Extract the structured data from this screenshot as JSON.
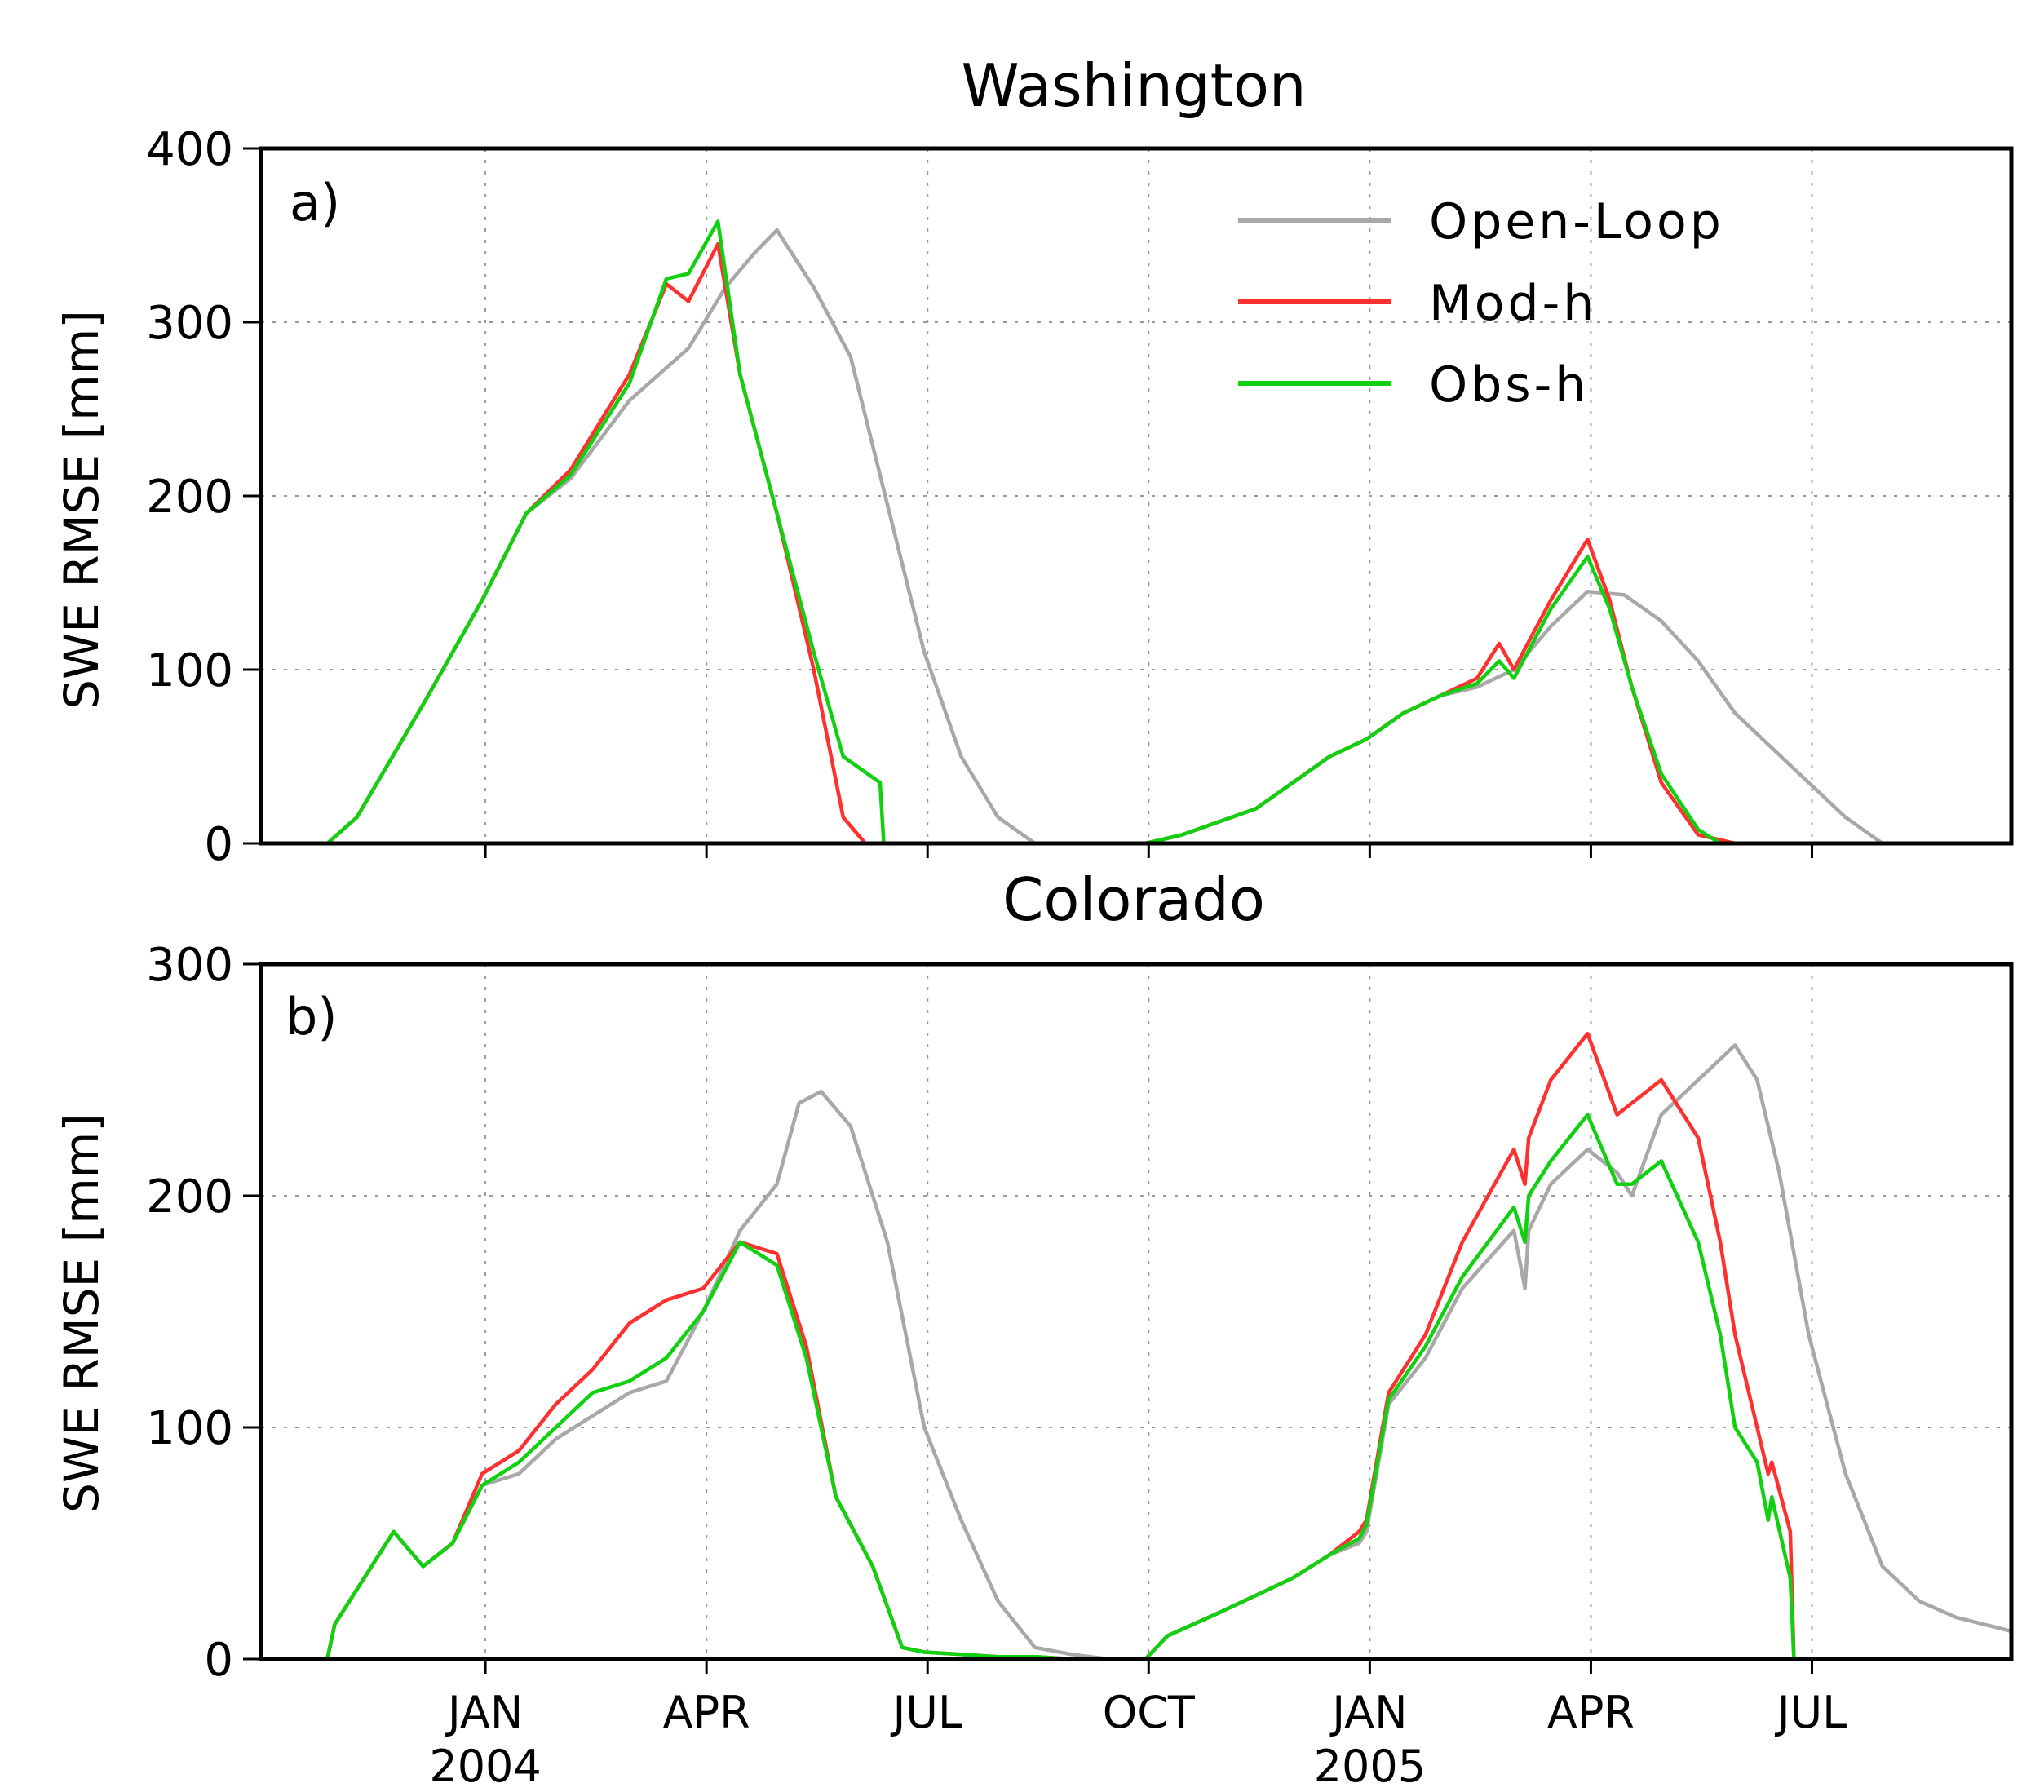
{
  "chart_data": [
    {
      "type": "line",
      "panel_label": "a)",
      "title": "Washington",
      "ylabel": "SWE RMSE [mm]",
      "xlabel": "",
      "ylim": [
        0,
        400
      ],
      "yticks": [
        0,
        100,
        200,
        300,
        400
      ],
      "x_unit": "months since 2003-10-01",
      "xlim": [
        0,
        23.75
      ],
      "grid": true,
      "legend": "top-right",
      "series": [
        {
          "name": "Open-Loop",
          "color": "#a8a8a8",
          "x": [
            0,
            0.9,
            1.3,
            2.2,
            3.0,
            3.6,
            4.2,
            5.0,
            5.8,
            6.3,
            6.7,
            7.0,
            7.5,
            8.0,
            8.5,
            9.0,
            9.5,
            10.0,
            10.5,
            11.0,
            11.5,
            12.0,
            12.5,
            13.5,
            14.5,
            15.0,
            15.5,
            16.0,
            16.5,
            17.0,
            17.5,
            18.0,
            18.5,
            19.0,
            19.5,
            20.0,
            20.5,
            21.0,
            21.5,
            22.0,
            22.5,
            23.0,
            23.75
          ],
          "values": [
            0,
            0,
            15,
            80,
            140,
            190,
            210,
            255,
            285,
            320,
            340,
            353,
            320,
            280,
            195,
            110,
            50,
            15,
            0,
            0,
            0,
            0,
            5,
            20,
            50,
            60,
            75,
            85,
            90,
            100,
            125,
            145,
            143,
            128,
            105,
            75,
            55,
            35,
            15,
            0,
            0,
            0,
            0
          ]
        },
        {
          "name": "Mod-h",
          "color": "#ff3030",
          "x": [
            0,
            0.9,
            1.3,
            2.2,
            3.0,
            3.6,
            4.2,
            5.0,
            5.5,
            5.8,
            6.2,
            6.5,
            7.0,
            7.5,
            7.9,
            8.2,
            8.5,
            9.0,
            11.5,
            12.0,
            12.5,
            13.5,
            14.5,
            15.0,
            15.5,
            16.0,
            16.5,
            16.8,
            17.0,
            17.5,
            18.0,
            18.3,
            18.6,
            19.0,
            19.5,
            20.0,
            23.75
          ],
          "values": [
            0,
            0,
            15,
            80,
            140,
            190,
            215,
            270,
            322,
            312,
            345,
            270,
            190,
            100,
            15,
            0,
            0,
            0,
            0,
            0,
            5,
            20,
            50,
            60,
            75,
            85,
            95,
            115,
            100,
            140,
            175,
            140,
            90,
            35,
            5,
            0,
            0
          ]
        },
        {
          "name": "Obs-h",
          "color": "#10d010",
          "x": [
            0,
            0.9,
            1.3,
            2.2,
            3.0,
            3.6,
            4.2,
            5.0,
            5.5,
            5.8,
            6.2,
            6.5,
            7.0,
            7.5,
            7.9,
            8.4,
            8.45,
            11.5,
            12.0,
            12.5,
            13.5,
            14.5,
            15.0,
            15.5,
            16.0,
            16.5,
            16.8,
            17.0,
            17.5,
            18.0,
            18.3,
            18.6,
            19.0,
            19.5,
            19.8,
            20.0,
            23.75
          ],
          "values": [
            0,
            0,
            15,
            80,
            140,
            190,
            212,
            265,
            325,
            328,
            358,
            270,
            190,
            110,
            50,
            35,
            0,
            0,
            0,
            5,
            20,
            50,
            60,
            75,
            85,
            92,
            105,
            95,
            135,
            165,
            135,
            90,
            40,
            8,
            0,
            0,
            0
          ]
        }
      ]
    },
    {
      "type": "line",
      "panel_label": "b)",
      "title": "Colorado",
      "ylabel": "SWE RMSE [mm]",
      "xlabel": "",
      "ylim": [
        0,
        300
      ],
      "yticks": [
        0,
        100,
        200,
        300
      ],
      "x_unit": "months since 2003-10-01",
      "xlim": [
        0,
        23.75
      ],
      "grid": true,
      "xticks": [
        {
          "month": 3,
          "label": "JAN",
          "year": "2004"
        },
        {
          "month": 6,
          "label": "APR",
          "year": ""
        },
        {
          "month": 9,
          "label": "JUL",
          "year": ""
        },
        {
          "month": 12,
          "label": "OCT",
          "year": ""
        },
        {
          "month": 15,
          "label": "JAN",
          "year": "2005"
        },
        {
          "month": 18,
          "label": "APR",
          "year": ""
        },
        {
          "month": 21,
          "label": "JUL",
          "year": ""
        }
      ],
      "series": [
        {
          "name": "Open-Loop",
          "color": "#a8a8a8",
          "x": [
            0,
            0.9,
            1.0,
            1.5,
            1.8,
            2.2,
            2.6,
            3.0,
            3.5,
            4.0,
            4.5,
            5.0,
            5.5,
            6.0,
            6.5,
            7.0,
            7.3,
            7.6,
            8.0,
            8.5,
            9.0,
            9.5,
            10.0,
            10.5,
            11.0,
            11.5,
            12.0,
            12.3,
            13.0,
            14.0,
            14.5,
            14.9,
            15.0,
            15.3,
            15.8,
            16.3,
            17.0,
            17.15,
            17.2,
            17.5,
            18.0,
            18.4,
            18.6,
            19.0,
            19.5,
            20.0,
            20.3,
            20.6,
            21.0,
            21.5,
            22.0,
            22.5,
            23.0,
            23.75
          ],
          "values": [
            0,
            0,
            15,
            40,
            55,
            40,
            50,
            75,
            80,
            95,
            105,
            115,
            120,
            150,
            185,
            205,
            240,
            245,
            230,
            180,
            100,
            60,
            25,
            5,
            2,
            0,
            0,
            10,
            20,
            35,
            45,
            50,
            55,
            110,
            130,
            160,
            185,
            160,
            185,
            205,
            220,
            210,
            200,
            235,
            250,
            265,
            250,
            210,
            140,
            80,
            40,
            25,
            18,
            12
          ]
        },
        {
          "name": "Mod-h",
          "color": "#ff3030",
          "x": [
            0,
            0.9,
            1.0,
            1.5,
            1.8,
            2.2,
            2.6,
            3.0,
            3.5,
            4.0,
            4.5,
            5.0,
            5.5,
            6.0,
            6.5,
            7.0,
            7.4,
            7.8,
            8.3,
            8.7,
            9.0,
            9.5,
            10.0,
            10.5,
            11.0,
            11.5,
            12.0,
            12.3,
            13.0,
            14.0,
            14.5,
            14.9,
            15.0,
            15.3,
            15.8,
            16.3,
            17.0,
            17.15,
            17.2,
            17.5,
            18.0,
            18.4,
            18.6,
            19.0,
            19.5,
            19.8,
            20.0,
            20.3,
            20.45,
            20.5,
            20.75,
            20.8,
            23.75
          ],
          "values": [
            0,
            0,
            15,
            40,
            55,
            40,
            50,
            80,
            90,
            110,
            125,
            145,
            155,
            160,
            180,
            175,
            135,
            70,
            40,
            5,
            3,
            2,
            1,
            1,
            0,
            0,
            0,
            10,
            20,
            35,
            45,
            55,
            60,
            115,
            140,
            180,
            220,
            205,
            225,
            250,
            270,
            235,
            240,
            250,
            225,
            180,
            140,
            100,
            80,
            85,
            55,
            0,
            0
          ]
        },
        {
          "name": "Obs-h",
          "color": "#10d010",
          "x": [
            0,
            0.9,
            1.0,
            1.5,
            1.8,
            2.2,
            2.6,
            3.0,
            3.5,
            4.0,
            4.5,
            5.0,
            5.5,
            6.0,
            6.5,
            7.0,
            7.4,
            7.8,
            8.3,
            8.7,
            9.0,
            9.5,
            10.0,
            10.5,
            11.0,
            11.5,
            12.0,
            12.3,
            13.0,
            14.0,
            14.5,
            14.9,
            15.0,
            15.3,
            15.8,
            16.3,
            17.0,
            17.15,
            17.2,
            17.5,
            18.0,
            18.4,
            18.6,
            19.0,
            19.5,
            19.8,
            20.0,
            20.3,
            20.45,
            20.5,
            20.75,
            20.8,
            23.75
          ],
          "values": [
            0,
            0,
            15,
            40,
            55,
            40,
            50,
            75,
            85,
            100,
            115,
            120,
            130,
            150,
            180,
            170,
            130,
            70,
            40,
            5,
            3,
            2,
            1,
            1,
            0,
            0,
            0,
            10,
            20,
            35,
            45,
            52,
            58,
            112,
            135,
            165,
            195,
            180,
            200,
            215,
            235,
            205,
            205,
            215,
            180,
            140,
            100,
            85,
            60,
            70,
            35,
            0,
            0
          ]
        }
      ]
    }
  ]
}
